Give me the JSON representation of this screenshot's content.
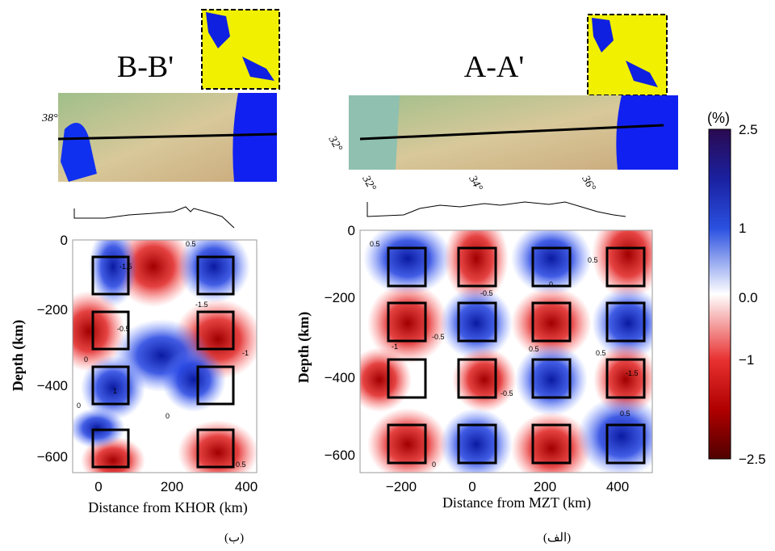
{
  "figure": {
    "colorbar": {
      "unit": "(%)",
      "ticks": [
        "2.5",
        "1",
        "0.0",
        "−1",
        "−2.5"
      ]
    },
    "panels": [
      {
        "title": "B-B'",
        "caption": "(ب)",
        "map_ticks": [
          "38°"
        ],
        "xticks": [
          "0",
          "200",
          "400"
        ],
        "yticks": [
          "0",
          "−200",
          "−400",
          "−600"
        ],
        "xlabel": "Distance from KHOR (km)",
        "ylabel": "Depth (km)",
        "contour_labels": [
          "0.5",
          "-1.5",
          "-1.5",
          "-0.5",
          "0",
          "1",
          "0",
          "0",
          "-1",
          "0.5"
        ]
      },
      {
        "title": "A-A'",
        "caption": "(الف)",
        "map_ticks": [
          "32°",
          "32°",
          "34°",
          "36°"
        ],
        "xticks": [
          "−200",
          "0",
          "200",
          "400"
        ],
        "yticks": [
          "0",
          "−200",
          "−400",
          "−600"
        ],
        "xlabel": "Distance from MZT (km)",
        "ylabel": "Depth (km)",
        "contour_labels": [
          "0.5",
          "0.5",
          "-0.5",
          "0",
          "-0.5",
          "-1",
          "0.5",
          "-0.5",
          "-1.5",
          "0.5",
          "0.5",
          "0"
        ]
      }
    ]
  }
}
